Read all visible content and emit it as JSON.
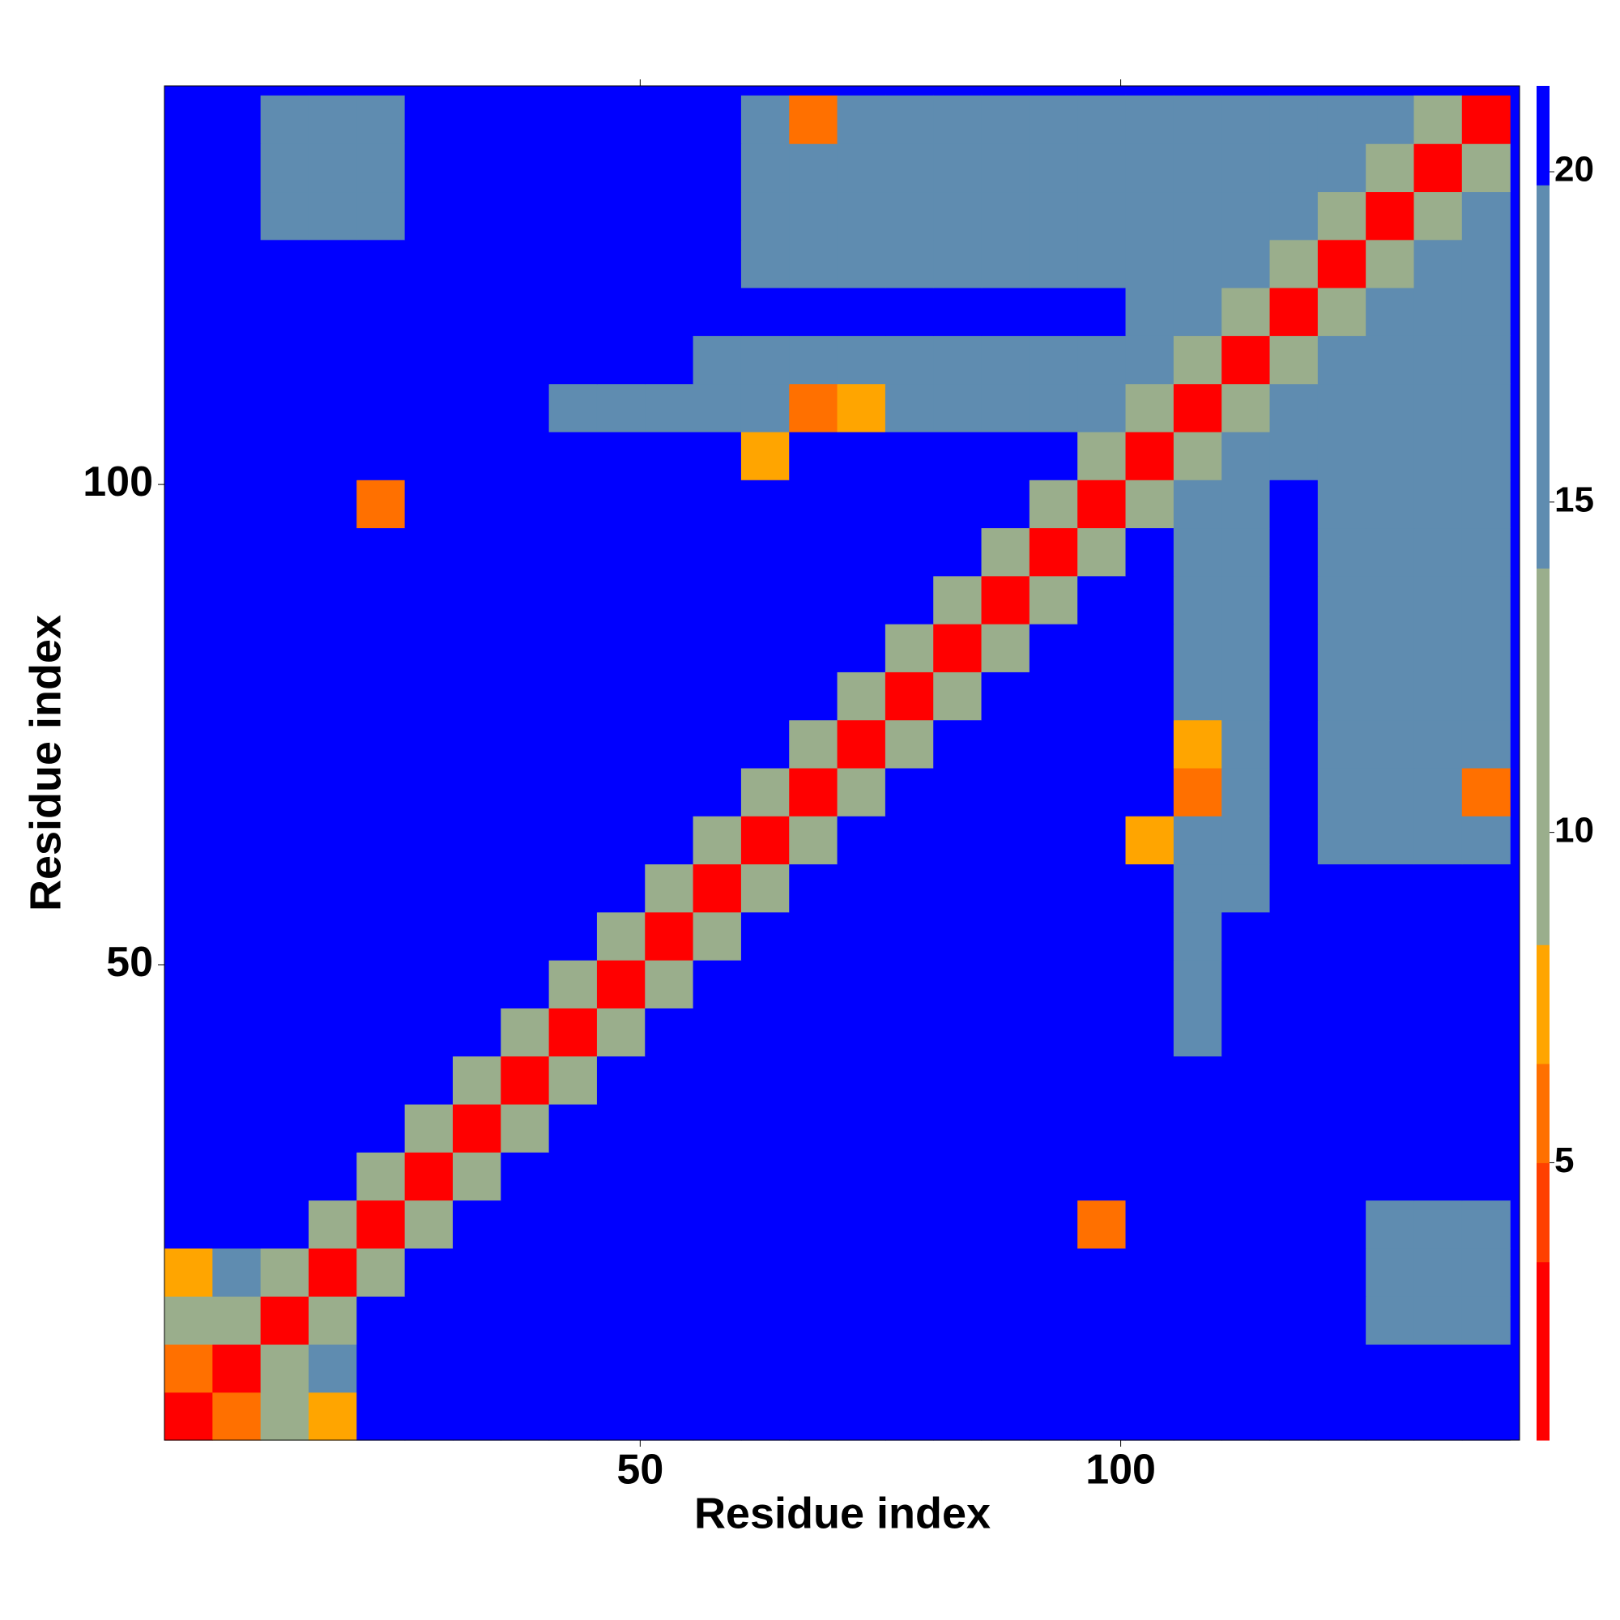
{
  "chart_data": {
    "type": "heatmap",
    "x_label": "Residue index",
    "y_label": "Residue index",
    "x": [
      3,
      8,
      13,
      18,
      23,
      28,
      33,
      38,
      43,
      48,
      53,
      58,
      63,
      68,
      73,
      78,
      83,
      88,
      93,
      98,
      103,
      108,
      113,
      118,
      123,
      128,
      133,
      138
    ],
    "y": [
      3,
      8,
      13,
      18,
      23,
      28,
      33,
      38,
      43,
      48,
      53,
      58,
      63,
      68,
      73,
      78,
      83,
      88,
      93,
      98,
      103,
      108,
      113,
      118,
      123,
      128,
      133,
      138
    ],
    "z": [
      [
        3,
        6,
        12,
        7,
        21,
        21,
        21,
        21,
        21,
        21,
        21,
        21,
        21,
        21,
        21,
        21,
        21,
        21,
        21,
        21,
        21,
        21,
        21,
        21,
        21,
        21,
        21,
        21
      ],
      [
        6,
        3,
        11,
        14,
        21,
        21,
        21,
        21,
        21,
        21,
        21,
        21,
        21,
        21,
        21,
        21,
        21,
        21,
        21,
        21,
        21,
        21,
        21,
        21,
        21,
        21,
        21,
        21
      ],
      [
        12,
        11,
        3,
        11,
        21,
        21,
        21,
        21,
        21,
        21,
        21,
        21,
        21,
        21,
        21,
        21,
        21,
        21,
        21,
        21,
        21,
        21,
        21,
        21,
        21,
        18,
        18,
        18
      ],
      [
        7,
        14,
        11,
        3,
        11,
        21,
        21,
        21,
        21,
        21,
        21,
        21,
        21,
        21,
        21,
        21,
        21,
        21,
        21,
        21,
        21,
        21,
        21,
        21,
        21,
        18,
        18,
        18
      ],
      [
        21,
        21,
        21,
        11,
        3,
        11,
        21,
        21,
        21,
        21,
        21,
        21,
        21,
        21,
        21,
        21,
        21,
        21,
        21,
        6,
        21,
        21,
        21,
        21,
        21,
        18,
        18,
        18
      ],
      [
        21,
        21,
        21,
        21,
        11,
        3,
        11,
        21,
        21,
        21,
        21,
        21,
        21,
        21,
        21,
        21,
        21,
        21,
        21,
        21,
        21,
        21,
        21,
        21,
        21,
        21,
        21,
        21
      ],
      [
        21,
        21,
        21,
        21,
        21,
        11,
        3,
        11,
        21,
        21,
        21,
        21,
        21,
        21,
        21,
        21,
        21,
        21,
        21,
        21,
        21,
        21,
        21,
        21,
        21,
        21,
        21,
        21
      ],
      [
        21,
        21,
        21,
        21,
        21,
        21,
        11,
        3,
        11,
        21,
        21,
        21,
        21,
        21,
        21,
        21,
        21,
        21,
        21,
        21,
        21,
        21,
        21,
        21,
        21,
        21,
        21,
        21
      ],
      [
        21,
        21,
        21,
        21,
        21,
        21,
        21,
        11,
        3,
        11,
        21,
        21,
        21,
        21,
        21,
        21,
        21,
        21,
        21,
        21,
        21,
        17,
        21,
        21,
        21,
        21,
        21,
        21
      ],
      [
        21,
        21,
        21,
        21,
        21,
        21,
        21,
        21,
        11,
        3,
        11,
        21,
        21,
        21,
        21,
        21,
        21,
        21,
        21,
        21,
        21,
        17,
        21,
        21,
        21,
        21,
        21,
        21
      ],
      [
        21,
        21,
        21,
        21,
        21,
        21,
        21,
        21,
        21,
        11,
        3,
        11,
        21,
        21,
        21,
        21,
        21,
        21,
        21,
        21,
        21,
        17,
        21,
        21,
        21,
        21,
        21,
        21
      ],
      [
        21,
        21,
        21,
        21,
        21,
        21,
        21,
        21,
        21,
        21,
        11,
        3,
        11,
        21,
        21,
        21,
        21,
        21,
        21,
        21,
        21,
        17,
        17,
        21,
        21,
        21,
        21,
        21
      ],
      [
        21,
        21,
        21,
        21,
        21,
        21,
        21,
        21,
        21,
        21,
        21,
        11,
        3,
        11,
        21,
        21,
        21,
        21,
        21,
        21,
        7,
        17,
        17,
        21,
        18,
        18,
        18,
        18
      ],
      [
        21,
        21,
        21,
        21,
        21,
        21,
        21,
        21,
        21,
        21,
        21,
        21,
        11,
        3,
        11,
        21,
        21,
        21,
        21,
        21,
        21,
        6,
        17,
        21,
        18,
        18,
        18,
        6
      ],
      [
        21,
        21,
        21,
        21,
        21,
        21,
        21,
        21,
        21,
        21,
        21,
        21,
        21,
        11,
        3,
        11,
        21,
        21,
        21,
        21,
        21,
        7,
        17,
        21,
        18,
        18,
        18,
        18
      ],
      [
        21,
        21,
        21,
        21,
        21,
        21,
        21,
        21,
        21,
        21,
        21,
        21,
        21,
        21,
        11,
        3,
        11,
        21,
        21,
        21,
        21,
        17,
        17,
        21,
        18,
        18,
        18,
        18
      ],
      [
        21,
        21,
        21,
        21,
        21,
        21,
        21,
        21,
        21,
        21,
        21,
        21,
        21,
        21,
        21,
        11,
        3,
        11,
        21,
        21,
        21,
        17,
        17,
        21,
        18,
        18,
        18,
        18
      ],
      [
        21,
        21,
        21,
        21,
        21,
        21,
        21,
        21,
        21,
        21,
        21,
        21,
        21,
        21,
        21,
        21,
        11,
        3,
        11,
        21,
        21,
        17,
        17,
        21,
        18,
        18,
        18,
        18
      ],
      [
        21,
        21,
        21,
        21,
        21,
        21,
        21,
        21,
        21,
        21,
        21,
        21,
        21,
        21,
        21,
        21,
        21,
        11,
        3,
        11,
        21,
        17,
        17,
        21,
        18,
        18,
        18,
        18
      ],
      [
        21,
        21,
        21,
        21,
        6,
        21,
        21,
        21,
        21,
        21,
        21,
        21,
        21,
        21,
        21,
        21,
        21,
        21,
        11,
        3,
        11,
        17,
        17,
        21,
        18,
        18,
        18,
        18
      ],
      [
        21,
        21,
        21,
        21,
        21,
        21,
        21,
        21,
        21,
        21,
        21,
        21,
        7,
        21,
        21,
        21,
        21,
        21,
        21,
        11,
        3,
        11,
        14,
        18,
        18,
        18,
        18,
        18
      ],
      [
        21,
        21,
        21,
        21,
        21,
        21,
        21,
        21,
        17,
        17,
        17,
        17,
        17,
        6,
        7,
        17,
        17,
        17,
        17,
        17,
        11,
        3,
        11,
        14,
        18,
        18,
        18,
        18
      ],
      [
        21,
        21,
        21,
        21,
        21,
        21,
        21,
        21,
        21,
        21,
        21,
        17,
        17,
        17,
        17,
        17,
        17,
        17,
        17,
        17,
        14,
        11,
        3,
        11,
        14,
        18,
        18,
        18
      ],
      [
        21,
        21,
        21,
        21,
        21,
        21,
        21,
        21,
        21,
        21,
        21,
        21,
        21,
        21,
        21,
        21,
        21,
        21,
        21,
        21,
        18,
        14,
        11,
        3,
        11,
        14,
        18,
        18
      ],
      [
        21,
        21,
        21,
        21,
        21,
        21,
        21,
        21,
        21,
        21,
        21,
        21,
        18,
        18,
        18,
        18,
        18,
        18,
        18,
        18,
        18,
        18,
        14,
        11,
        3,
        11,
        14,
        18
      ],
      [
        21,
        21,
        18,
        18,
        18,
        21,
        21,
        21,
        21,
        21,
        21,
        21,
        18,
        18,
        18,
        18,
        18,
        18,
        18,
        18,
        18,
        18,
        18,
        14,
        11,
        3,
        11,
        14
      ],
      [
        21,
        21,
        18,
        18,
        18,
        21,
        21,
        21,
        21,
        21,
        21,
        21,
        18,
        18,
        18,
        18,
        18,
        18,
        18,
        18,
        18,
        18,
        18,
        18,
        14,
        11,
        3,
        11
      ],
      [
        21,
        21,
        18,
        18,
        18,
        21,
        21,
        21,
        21,
        21,
        21,
        21,
        18,
        6,
        18,
        18,
        18,
        18,
        18,
        18,
        18,
        18,
        18,
        18,
        18,
        14,
        11,
        3
      ]
    ],
    "xlim": [
      0.5,
      141.5
    ],
    "ylim": [
      0.5,
      141.5
    ],
    "xticks": [
      50,
      100
    ],
    "yticks": [
      50,
      100
    ],
    "color_levels": [
      0.8,
      3.5,
      5,
      6.5,
      8.3,
      14,
      19.8,
      21.3
    ],
    "colors": [
      "#ff0000",
      "#ff4000",
      "#ff7000",
      "#ffa500",
      "#9aae8c",
      "#5f8cb0",
      "#0000ff"
    ],
    "colorbar_ticks": [
      5,
      10,
      15,
      20
    ]
  }
}
